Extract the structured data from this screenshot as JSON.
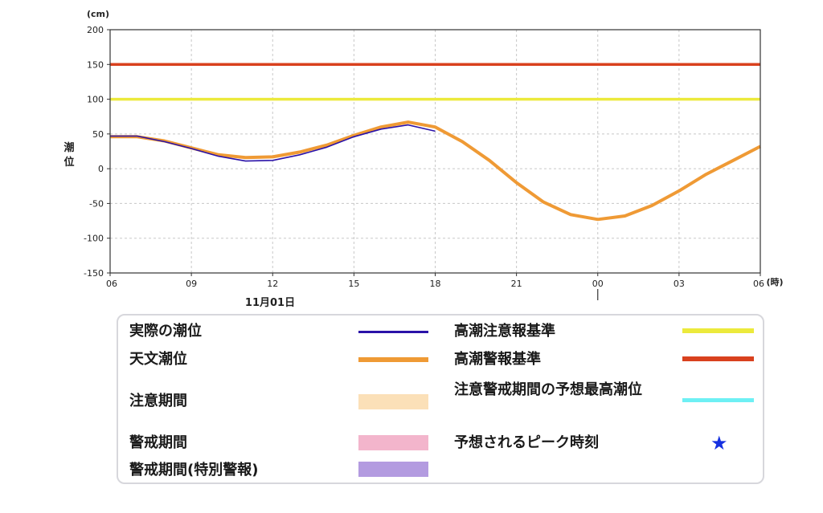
{
  "chart_data": {
    "type": "line",
    "y_unit": "(cm)",
    "ylabel": "潮\n位",
    "x_unit": "(時)",
    "ylim": [
      -150,
      200
    ],
    "yticks": [
      200,
      150,
      100,
      50,
      0,
      -50,
      -100,
      -150
    ],
    "x_hours_range": [
      6,
      30
    ],
    "xticks": [
      {
        "h": 6,
        "label": "06"
      },
      {
        "h": 9,
        "label": "09"
      },
      {
        "h": 12,
        "label": "12"
      },
      {
        "h": 15,
        "label": "15"
      },
      {
        "h": 18,
        "label": "18"
      },
      {
        "h": 21,
        "label": "21"
      },
      {
        "h": 24,
        "label": "00"
      },
      {
        "h": 27,
        "label": "03"
      },
      {
        "h": 30,
        "label": "06"
      }
    ],
    "date_label": "11月01日",
    "thresholds": [
      {
        "name": "高潮警報基準",
        "value": 150,
        "color": "#d9411e"
      },
      {
        "name": "高潮注意報基準",
        "value": 100,
        "color": "#ecea3c"
      }
    ],
    "series": [
      {
        "name": "天文潮位",
        "color": "#ef9a35",
        "x": [
          6,
          7,
          8,
          9,
          10,
          11,
          12,
          13,
          14,
          15,
          16,
          17,
          18,
          19,
          20,
          21,
          22,
          23,
          24,
          25,
          26,
          27,
          28,
          29,
          30
        ],
        "values": [
          46,
          46,
          40,
          30,
          20,
          16,
          17,
          24,
          34,
          48,
          60,
          67,
          60,
          39,
          12,
          -20,
          -48,
          -66,
          -73,
          -68,
          -53,
          -32,
          -8,
          12,
          32
        ]
      },
      {
        "name": "実際の潮位",
        "color": "#2a12a8",
        "x": [
          6,
          7,
          8,
          9,
          10,
          11,
          12,
          13,
          14,
          15,
          16,
          17,
          18
        ],
        "values": [
          47,
          47,
          39,
          29,
          18,
          11,
          12,
          20,
          31,
          46,
          57,
          63,
          54
        ]
      }
    ]
  },
  "legend": {
    "observed": "実際の潮位",
    "astronomical": "天文潮位",
    "caution_period": "注意期間",
    "warning_period": "警戒期間",
    "special_warning_period": "警戒期間(特別警報)",
    "advisory_level": "高潮注意報基準",
    "warning_level": "高潮警報基準",
    "forecast_max": "注意警戒期間の予想最高潮位",
    "peak_time": "予想されるピーク時刻",
    "colors": {
      "observed": "#2a12a8",
      "astronomical": "#ef9a35",
      "caution_period": "#fbe0b8",
      "warning_period": "#f3b5cc",
      "special_warning_period": "#b39be0",
      "advisory_level": "#ecea3c",
      "warning_level": "#d9411e",
      "forecast_max": "#6ef0f4",
      "peak_star": "#1530e0"
    },
    "star_glyph": "★"
  }
}
